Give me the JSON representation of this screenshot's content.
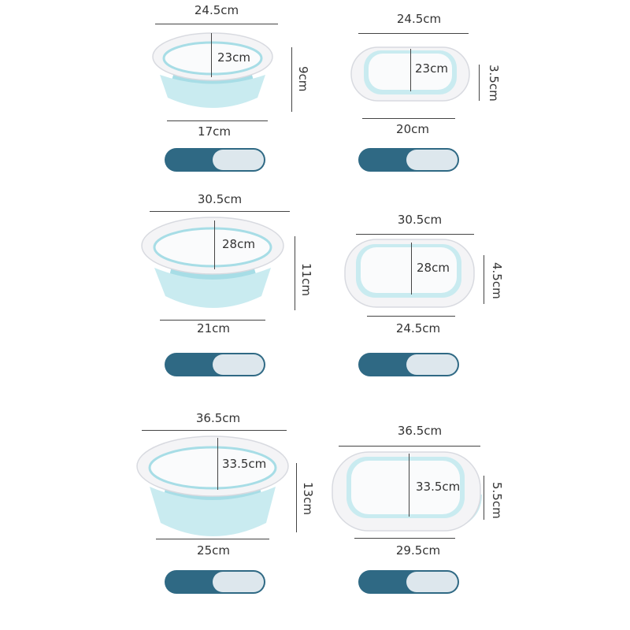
{
  "colors": {
    "rim": "#f4f4f6",
    "rim_shadow": "#d8dae0",
    "silicone": "#c9ebf0",
    "silicone_dark": "#a7dde6",
    "inner": "#fafbfc",
    "handle": "#2f6984",
    "handle_light": "#e7eef2",
    "line": "#444444",
    "text": "#333333"
  },
  "products": [
    {
      "open": {
        "top": "24.5cm",
        "inner": "23cm",
        "height": "9cm",
        "bottom": "17cm"
      },
      "folded": {
        "top": "24.5cm",
        "inner": "23cm",
        "height": "3.5cm",
        "bottom": "20cm"
      }
    },
    {
      "open": {
        "top": "30.5cm",
        "inner": "28cm",
        "height": "11cm",
        "bottom": "21cm"
      },
      "folded": {
        "top": "30.5cm",
        "inner": "28cm",
        "height": "4.5cm",
        "bottom": "24.5cm"
      }
    },
    {
      "open": {
        "top": "36.5cm",
        "inner": "33.5cm",
        "height": "13cm",
        "bottom": "25cm"
      },
      "folded": {
        "top": "36.5cm",
        "inner": "33.5cm",
        "height": "5.5cm",
        "bottom": "29.5cm"
      }
    }
  ]
}
